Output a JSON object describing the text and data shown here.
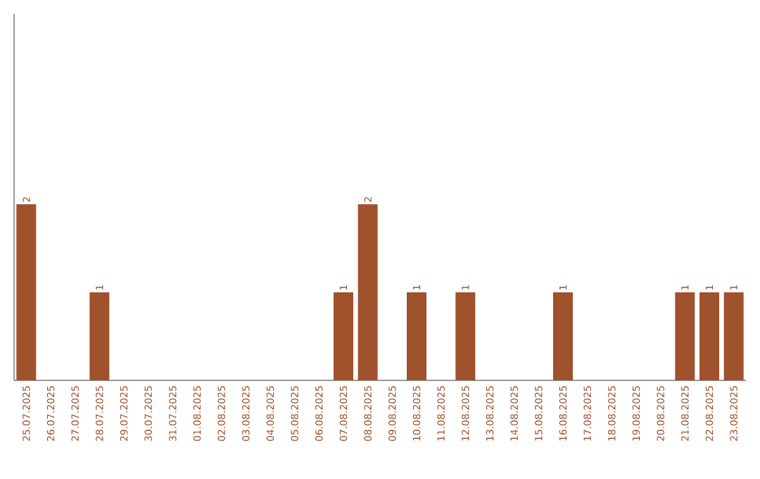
{
  "chart_data": {
    "type": "bar",
    "categories": [
      "25.07.2025",
      "26.07.2025",
      "27.07.2025",
      "28.07.2025",
      "29.07.2025",
      "30.07.2025",
      "31.07.2025",
      "01.08.2025",
      "02.08.2025",
      "03.08.2025",
      "04.08.2025",
      "05.08.2025",
      "06.08.2025",
      "07.08.2025",
      "08.08.2025",
      "09.08.2025",
      "10.08.2025",
      "11.08.2025",
      "12.08.2025",
      "13.08.2025",
      "14.08.2025",
      "15.08.2025",
      "16.08.2025",
      "17.08.2025",
      "18.08.2025",
      "19.08.2025",
      "20.08.2025",
      "21.08.2025",
      "22.08.2025",
      "23.08.2025"
    ],
    "values": [
      2,
      0,
      0,
      1,
      0,
      0,
      0,
      0,
      0,
      0,
      0,
      0,
      0,
      1,
      2,
      0,
      1,
      0,
      1,
      0,
      0,
      0,
      1,
      0,
      0,
      0,
      0,
      1,
      1,
      1
    ],
    "value_labels": [
      "2",
      null,
      null,
      "1",
      null,
      null,
      null,
      null,
      null,
      null,
      null,
      null,
      null,
      "1",
      "2",
      null,
      "1",
      null,
      "1",
      null,
      null,
      null,
      "1",
      null,
      null,
      null,
      null,
      "1",
      "1",
      "1"
    ],
    "color": "#a0522d"
  }
}
